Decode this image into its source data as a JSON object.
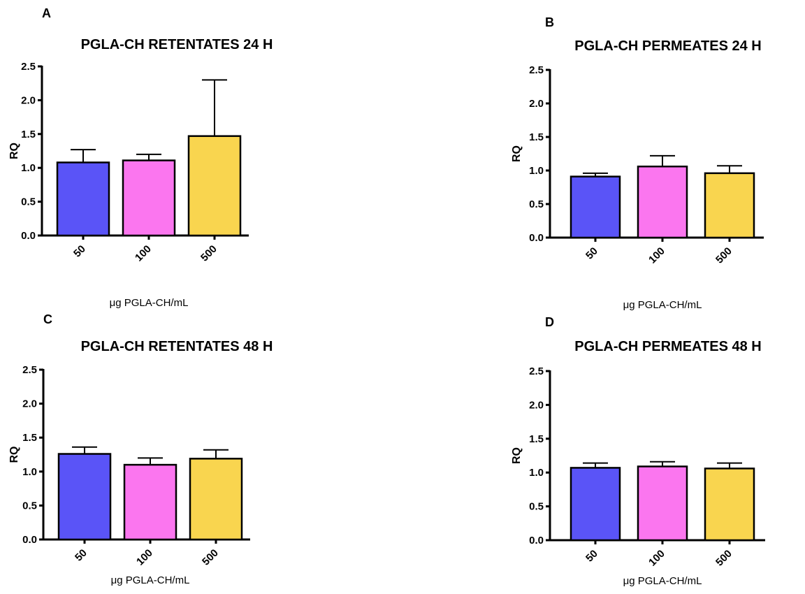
{
  "figure": {
    "bar_colors": [
      "#5a54f7",
      "#fb76ef",
      "#f9d54f"
    ]
  },
  "chart_data": [
    {
      "type": "bar",
      "panel": "A",
      "title": "PGLA-CH RETENTATES 24 H",
      "xlabel": "μg PGLA-CH/mL",
      "ylabel": "RQ",
      "categories": [
        "50",
        "100",
        "500"
      ],
      "values": [
        1.08,
        1.11,
        1.47
      ],
      "errors": [
        0.19,
        0.09,
        0.83
      ],
      "ylim": [
        0,
        2.5
      ],
      "yticks": [
        "0.0",
        "0.5",
        "1.0",
        "1.5",
        "2.0",
        "2.5"
      ],
      "grid": false
    },
    {
      "type": "bar",
      "panel": "B",
      "title": "PGLA-CH PERMEATES 24 H",
      "xlabel": "μg PGLA-CH/mL",
      "ylabel": "RQ",
      "categories": [
        "50",
        "100",
        "500"
      ],
      "values": [
        0.91,
        1.06,
        0.96
      ],
      "errors": [
        0.05,
        0.16,
        0.11
      ],
      "ylim": [
        0,
        2.5
      ],
      "yticks": [
        "0.0",
        "0.5",
        "1.0",
        "1.5",
        "2.0",
        "2.5"
      ],
      "grid": false
    },
    {
      "type": "bar",
      "panel": "C",
      "title": "PGLA-CH RETENTATES 48 H",
      "xlabel": "μg PGLA-CH/mL",
      "ylabel": "RQ",
      "categories": [
        "50",
        "100",
        "500"
      ],
      "values": [
        1.26,
        1.1,
        1.19
      ],
      "errors": [
        0.1,
        0.1,
        0.13
      ],
      "ylim": [
        0,
        2.5
      ],
      "yticks": [
        "0.0",
        "0.5",
        "1.0",
        "1.5",
        "2.0",
        "2.5"
      ],
      "grid": false
    },
    {
      "type": "bar",
      "panel": "D",
      "title": "PGLA-CH PERMEATES 48 H",
      "xlabel": "μg PGLA-CH/mL",
      "ylabel": "RQ",
      "categories": [
        "50",
        "100",
        "500"
      ],
      "values": [
        1.07,
        1.09,
        1.06
      ],
      "errors": [
        0.07,
        0.07,
        0.08
      ],
      "ylim": [
        0,
        2.5
      ],
      "yticks": [
        "0.0",
        "0.5",
        "1.0",
        "1.5",
        "2.0",
        "2.5"
      ],
      "grid": false
    }
  ]
}
